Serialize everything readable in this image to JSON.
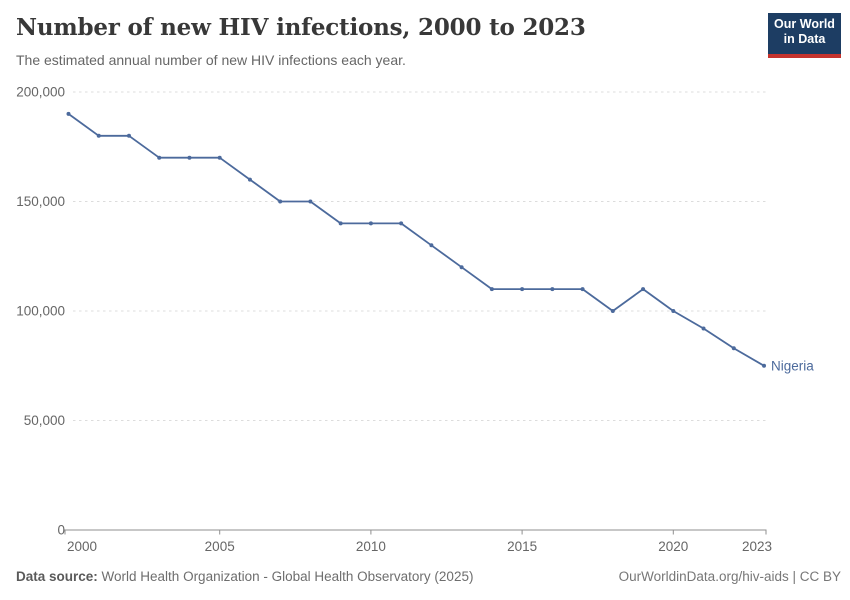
{
  "header": {
    "title": "Number of new HIV infections, 2000 to 2023",
    "subtitle": "The estimated annual number of new HIV infections each year.",
    "logo": {
      "line1": "Our World",
      "line2": "in Data"
    }
  },
  "chart_data": {
    "type": "line",
    "title": "Number of new HIV infections, 2000 to 2023",
    "x": [
      2000,
      2001,
      2002,
      2003,
      2004,
      2005,
      2006,
      2007,
      2008,
      2009,
      2010,
      2011,
      2012,
      2013,
      2014,
      2015,
      2016,
      2017,
      2018,
      2019,
      2020,
      2021,
      2022,
      2023
    ],
    "series": [
      {
        "name": "Nigeria",
        "values": [
          190000,
          180000,
          180000,
          170000,
          170000,
          170000,
          160000,
          150000,
          150000,
          140000,
          140000,
          140000,
          130000,
          120000,
          110000,
          110000,
          110000,
          110000,
          100000,
          110000,
          100000,
          92000,
          83000,
          75000
        ]
      }
    ],
    "ylim": [
      0,
      200000
    ],
    "xlim": [
      2000,
      2023
    ],
    "y_ticks": [
      {
        "value": 0,
        "label": "0"
      },
      {
        "value": 50000,
        "label": "50,000"
      },
      {
        "value": 100000,
        "label": "100,000"
      },
      {
        "value": 150000,
        "label": "150,000"
      },
      {
        "value": 200000,
        "label": "200,000"
      }
    ],
    "x_ticks": [
      {
        "value": 2000,
        "label": "2000"
      },
      {
        "value": 2005,
        "label": "2005"
      },
      {
        "value": 2010,
        "label": "2010"
      },
      {
        "value": 2015,
        "label": "2015"
      },
      {
        "value": 2020,
        "label": "2020"
      },
      {
        "value": 2023,
        "label": "2023"
      }
    ],
    "grid": "horizontal-dashed",
    "legend": "line-end-label"
  },
  "footer": {
    "source_label": "Data source:",
    "source_text": " World Health Organization - Global Health Observatory (2025)",
    "right_text": "OurWorldinData.org/hiv-aids | CC BY"
  },
  "colors": {
    "line": "#4c6a9c",
    "grid": "#dcdcdc",
    "axis": "#8f8f8f",
    "tick_text": "#666666",
    "logo_bg": "#1d3d63",
    "logo_bar": "#c5332d"
  }
}
